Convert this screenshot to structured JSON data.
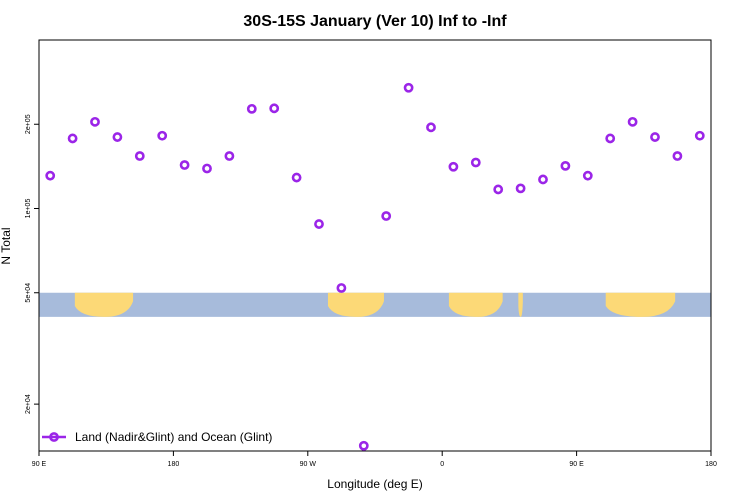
{
  "colors": {
    "marker": "#9b25e8",
    "ocean": "#a7bbdb",
    "land": "#fcd977",
    "frame": "#000000"
  },
  "chart_data": {
    "type": "scatter",
    "title": "30S-15S January (Ver 10)   Inf to -Inf",
    "xlabel": "Longitude (deg E)",
    "ylabel": "N Total",
    "x_scale": "linear",
    "y_scale": "log",
    "xlim": [
      90,
      390
    ],
    "ylim": [
      13600,
      400000
    ],
    "x_ticks": [
      {
        "value": 90,
        "label": "90 E"
      },
      {
        "value": 150,
        "label": "180"
      },
      {
        "value": 210,
        "label": "90 W"
      },
      {
        "value": 270,
        "label": "0"
      },
      {
        "value": 330,
        "label": "90 E"
      },
      {
        "value": 390,
        "label": "180"
      }
    ],
    "y_ticks": [
      {
        "value": 20000,
        "label": "2e+04"
      },
      {
        "value": 50000,
        "label": "5e+04"
      },
      {
        "value": 100000,
        "label": "1e+05"
      },
      {
        "value": 200000,
        "label": "2e+05"
      }
    ],
    "series": [
      {
        "name": "Land (Nadir&Glint) and Ocean (Glint)",
        "x": [
          95,
          105,
          115,
          125,
          135,
          145,
          155,
          165,
          175,
          185,
          195,
          205,
          215,
          225,
          235,
          245,
          255,
          265,
          275,
          285,
          295,
          305,
          315,
          325,
          335,
          345,
          355,
          365,
          375,
          385
        ],
        "y": [
          131000,
          178000,
          204000,
          180000,
          154000,
          182000,
          143000,
          139000,
          154000,
          227000,
          228000,
          129000,
          88000,
          52000,
          14200,
          94000,
          270000,
          195000,
          141000,
          146000,
          117000,
          118000,
          127000,
          142000,
          131000,
          178000,
          204000,
          180000,
          154000,
          182000
        ]
      }
    ],
    "legend": {
      "position": "bottom-left",
      "entries": [
        "Land (Nadir&Glint) and Ocean (Glint)"
      ]
    },
    "map_band": {
      "y_range": [
        41000,
        50000
      ],
      "land_spans": [
        [
          106,
          132
        ],
        [
          219,
          244
        ],
        [
          273,
          297
        ],
        [
          304,
          306
        ],
        [
          343,
          374
        ]
      ]
    }
  }
}
